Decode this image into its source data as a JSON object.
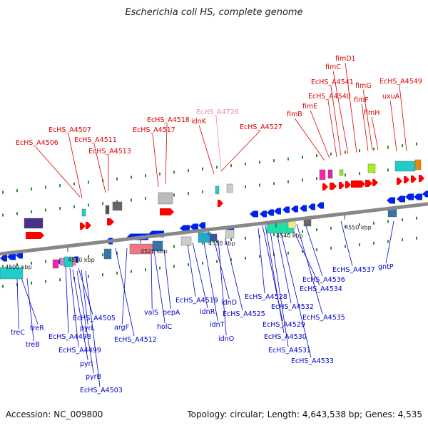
{
  "title": "Escherichia coli HS, complete genome",
  "footer": {
    "accession": "Accession: NC_009800",
    "topology": "Topology: circular; Length: 4,643,538 bp; Genes: 4,535"
  },
  "colors": {
    "forward_label": "#dd0000",
    "reverse_label": "#0000cc",
    "pseudogene_label": "#ee88bb",
    "backbone": "#888888",
    "forward_arrow": "#ff0000",
    "reverse_arrow": "#0022ee"
  },
  "scale_ticks": [
    "4500 kbp",
    "4510 kbp",
    "4520 kbp",
    "4530 kbp",
    "4540 kbp",
    "4550 kbp"
  ],
  "forward_labels": [
    "EcHS_A4506",
    "EcHS_A4507",
    "EcHS_A4511",
    "EcHS_A4513",
    "EcHS_A4517",
    "EcHS_A4518",
    "idnK",
    "EcHS_A4726",
    "EcHS_A4527",
    "fimB",
    "fimE",
    "EcHS_A4540",
    "EcHS_A4541",
    "fimC",
    "fimD1",
    "fimF",
    "fimG",
    "fimH",
    "uxuA",
    "EcHS_A4549"
  ],
  "reverse_labels": [
    "treR",
    "treC",
    "treB",
    "EcHS_A4498",
    "EcHS_A4499",
    "EcHS_A4505",
    "pyrL",
    "pyrI",
    "pyrB",
    "EcHS_A4503",
    "argF",
    "EcHS_A4512",
    "valS",
    "holC",
    "pepA",
    "EcHS_A4519",
    "idnR",
    "idnT",
    "idnD",
    "idnO",
    "EcHS_A4525",
    "EcHS_A4528",
    "EcHS_A4529",
    "EcHS_A4530",
    "EcHS_A4531",
    "EcHS_A4532",
    "EcHS_A4533",
    "EcHS_A4534",
    "EcHS_A4535",
    "EcHS_A4536",
    "EcHS_A4537",
    "gntP"
  ]
}
